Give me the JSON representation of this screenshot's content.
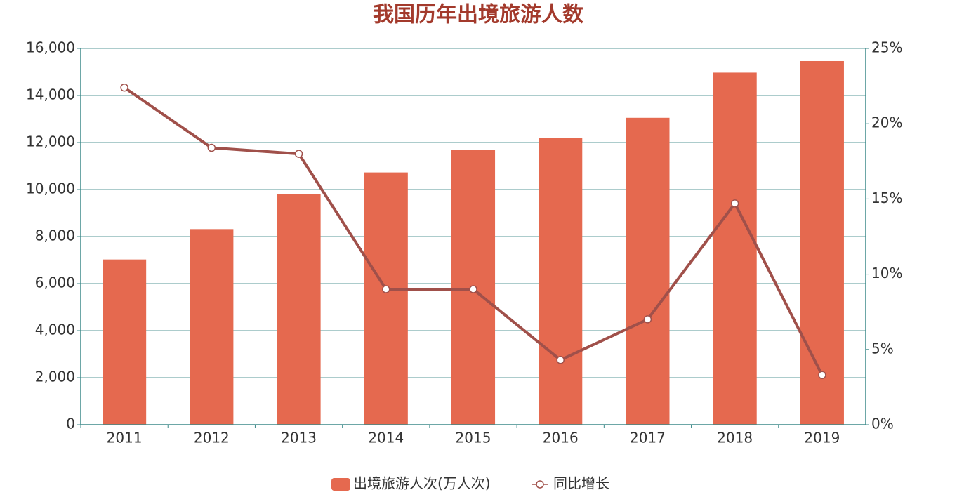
{
  "chart_data": {
    "type": "bar-line",
    "title": "我国历年出境旅游人数",
    "categories": [
      "2011",
      "2012",
      "2013",
      "2014",
      "2015",
      "2016",
      "2017",
      "2018",
      "2019"
    ],
    "series": [
      {
        "name": "出境旅游人次(万人次)",
        "type": "bar",
        "color": "#e5694f",
        "values": [
          7025,
          8318,
          9819,
          10728,
          11689,
          12203,
          13051,
          14972,
          15463
        ]
      },
      {
        "name": "同比增长",
        "type": "line",
        "color": "#a0504a",
        "axis": "y2",
        "values": [
          22.4,
          18.4,
          18.0,
          9.0,
          9.0,
          4.3,
          7.0,
          14.7,
          3.3
        ]
      }
    ],
    "ylim": [
      0,
      16000
    ],
    "yticks": [
      0,
      {
        "value": 2000,
        "label": "2,000"
      },
      {
        "value": 4000,
        "label": "4,000"
      },
      {
        "value": 6000,
        "label": "6,000"
      },
      {
        "value": 8000,
        "label": "8,000"
      },
      {
        "value": 10000,
        "label": "10,000"
      },
      {
        "value": 12000,
        "label": "12,000"
      },
      {
        "value": 14000,
        "label": "14,000"
      },
      {
        "value": 16000,
        "label": "16,000"
      }
    ],
    "y2lim": [
      0,
      25
    ],
    "y2ticks": [
      {
        "value": 0,
        "label": "0%"
      },
      {
        "value": 5,
        "label": "5%"
      },
      {
        "value": 10,
        "label": "10%"
      },
      {
        "value": 15,
        "label": "15%"
      },
      {
        "value": 20,
        "label": "20%"
      },
      {
        "value": 25,
        "label": "25%"
      }
    ],
    "grid": true
  }
}
